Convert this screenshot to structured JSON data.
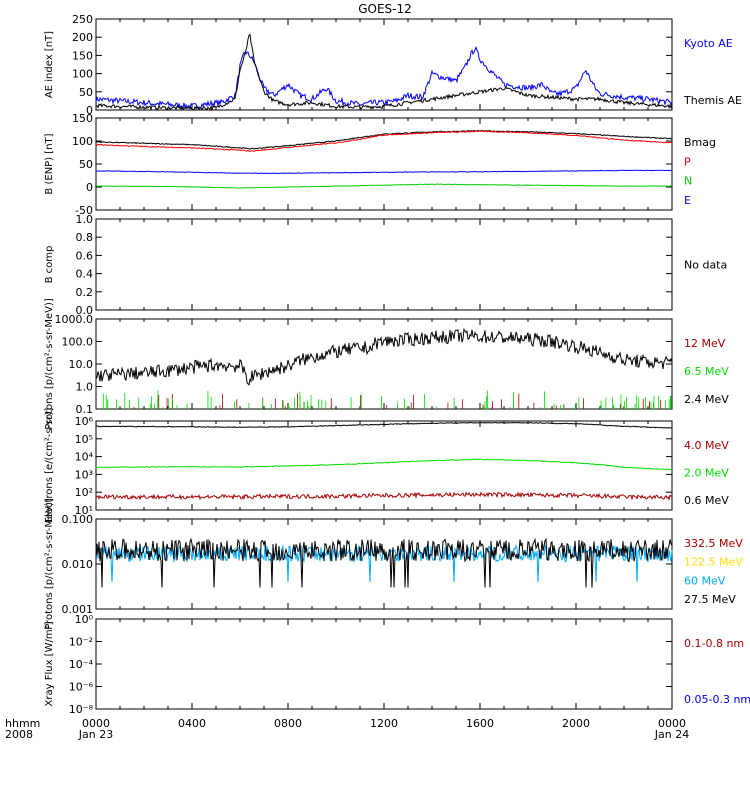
{
  "title": "GOES-12",
  "x_axis": {
    "corner_label_1": "hhmm",
    "corner_label_2": "2008",
    "ticks": [
      {
        "label": "0000",
        "hour": 0,
        "date": "Jan 23"
      },
      {
        "label": "0400",
        "hour": 4
      },
      {
        "label": "0800",
        "hour": 8
      },
      {
        "label": "1200",
        "hour": 12
      },
      {
        "label": "1600",
        "hour": 16
      },
      {
        "label": "2000",
        "hour": 20
      },
      {
        "label": "0000",
        "hour": 24,
        "date": "Jan 24"
      }
    ]
  },
  "chart_data": [
    {
      "type": "line",
      "ylabel": "AE index [nT]",
      "ylim": [
        0,
        250
      ],
      "scale": "linear",
      "yticks": [
        [
          0,
          "0"
        ],
        [
          50,
          "50"
        ],
        [
          100,
          "100"
        ],
        [
          150,
          "150"
        ],
        [
          200,
          "200"
        ],
        [
          250,
          "250"
        ]
      ],
      "series": [
        {
          "name": "Kyoto AE",
          "color": "#0000ff",
          "noise": 8,
          "x": [
            0,
            1,
            2,
            3,
            4,
            4.8,
            5.2,
            5.8,
            6.0,
            6.2,
            6.4,
            6.6,
            6.8,
            7.0,
            7.4,
            8.0,
            8.5,
            9.0,
            9.6,
            10,
            11,
            11.6,
            12,
            12.5,
            13,
            13.6,
            14,
            14.4,
            15,
            15.4,
            15.6,
            15.8,
            16,
            16.4,
            17,
            18,
            18.6,
            19,
            19.4,
            20,
            20.4,
            20.8,
            21,
            22,
            23,
            24
          ],
          "y": [
            30,
            25,
            20,
            15,
            10,
            18,
            20,
            40,
            120,
            160,
            150,
            130,
            90,
            60,
            40,
            70,
            40,
            30,
            60,
            25,
            15,
            20,
            20,
            25,
            40,
            35,
            100,
            90,
            80,
            120,
            150,
            170,
            140,
            110,
            70,
            60,
            70,
            45,
            45,
            60,
            110,
            60,
            45,
            35,
            30,
            20
          ]
        },
        {
          "name": "Themis AE",
          "color": "#000000",
          "noise": 5,
          "x": [
            0,
            1,
            2,
            3,
            4,
            5,
            5.8,
            6.0,
            6.2,
            6.4,
            6.6,
            6.8,
            7.0,
            7.4,
            8,
            9,
            10,
            11,
            12,
            13,
            14,
            15,
            16,
            17,
            18,
            19,
            20,
            21,
            22,
            23,
            24
          ],
          "y": [
            12,
            10,
            8,
            6,
            5,
            6,
            30,
            110,
            150,
            210,
            130,
            90,
            50,
            25,
            15,
            20,
            10,
            8,
            10,
            20,
            30,
            40,
            50,
            60,
            40,
            35,
            30,
            30,
            20,
            15,
            10
          ]
        }
      ]
    },
    {
      "type": "line",
      "ylabel": "B (ENP) [nT]",
      "ylim": [
        -50,
        150
      ],
      "scale": "linear",
      "yticks": [
        [
          -50,
          "-50"
        ],
        [
          0,
          "0"
        ],
        [
          50,
          "50"
        ],
        [
          100,
          "100"
        ],
        [
          150,
          "150"
        ]
      ],
      "series": [
        {
          "name": "Bmag",
          "color": "#000000",
          "noise": 1,
          "x": [
            0,
            2,
            4,
            6,
            6.5,
            8,
            10,
            11,
            12,
            14,
            16,
            18,
            20,
            22,
            24
          ],
          "y": [
            98,
            95,
            92,
            85,
            83,
            90,
            100,
            108,
            115,
            120,
            122,
            120,
            116,
            110,
            105
          ]
        },
        {
          "name": "P",
          "color": "#ff0000",
          "noise": 1,
          "x": [
            0,
            2,
            4,
            6,
            6.5,
            8,
            10,
            11,
            12,
            14,
            16,
            18,
            20,
            22,
            24
          ],
          "y": [
            92,
            88,
            85,
            80,
            78,
            86,
            96,
            104,
            113,
            118,
            121,
            118,
            112,
            102,
            96
          ]
        },
        {
          "name": "N",
          "color": "#00cc00",
          "noise": 0.6,
          "x": [
            0,
            3,
            6,
            8,
            10,
            12,
            14,
            16,
            18,
            20,
            22,
            24
          ],
          "y": [
            2,
            1,
            -2,
            0,
            2,
            4,
            6,
            5,
            4,
            3,
            2,
            2
          ]
        },
        {
          "name": "E",
          "color": "#0000ff",
          "noise": 0.6,
          "x": [
            0,
            3,
            6,
            8,
            10,
            12,
            14,
            16,
            18,
            20,
            22,
            24
          ],
          "y": [
            35,
            33,
            30,
            30,
            31,
            32,
            33,
            33,
            34,
            35,
            36,
            36
          ]
        }
      ]
    },
    {
      "type": "line",
      "ylabel": "B comp",
      "ylim": [
        0,
        1
      ],
      "scale": "linear",
      "yticks": [
        [
          0,
          "0.0"
        ],
        [
          0.2,
          "0.2"
        ],
        [
          0.4,
          "0.4"
        ],
        [
          0.6,
          "0.6"
        ],
        [
          0.8,
          "0.8"
        ],
        [
          1.0,
          "1.0"
        ]
      ],
      "no_data_label": "No data",
      "series": []
    },
    {
      "type": "line",
      "ylabel": "Protons [p/(cm²-s-sr-MeV)]",
      "ylim": [
        0.1,
        1000
      ],
      "scale": "log",
      "yticks": [
        [
          0.1,
          "0.1"
        ],
        [
          1,
          "1.0"
        ],
        [
          10,
          "10.0"
        ],
        [
          100,
          "100.0"
        ],
        [
          1000,
          "1000.0"
        ]
      ],
      "series": [
        {
          "name": "12 MeV",
          "color": "#aa0000",
          "spikes": true,
          "spike_max": 0.45,
          "spike_rate": 0.12
        },
        {
          "name": "6.5 MeV",
          "color": "#00dd00",
          "spikes": true,
          "spike_max": 0.6,
          "spike_rate": 0.35
        },
        {
          "name": "2.4 MeV",
          "color": "#000000",
          "noise": 0.3,
          "x": [
            0,
            2,
            3,
            4,
            5,
            6,
            6.3,
            7,
            8,
            9,
            10,
            11,
            11.5,
            11.7,
            12,
            13,
            14,
            15,
            15.5,
            16,
            17,
            18,
            19,
            20,
            21,
            22,
            23,
            24
          ],
          "y": [
            3,
            4,
            5,
            7,
            9,
            8,
            2,
            4,
            8,
            20,
            35,
            50,
            55,
            90,
            100,
            120,
            150,
            170,
            180,
            170,
            150,
            130,
            100,
            60,
            30,
            15,
            12,
            11
          ]
        }
      ]
    },
    {
      "type": "line",
      "ylabel": "Electrons [e/(cm²-s-sr)]",
      "ylim": [
        10,
        1000000
      ],
      "scale": "log",
      "yticks": [
        [
          10,
          "10¹"
        ],
        [
          100,
          "10²"
        ],
        [
          1000,
          "10³"
        ],
        [
          10000,
          "10⁴"
        ],
        [
          100000,
          "10⁵"
        ],
        [
          1000000,
          "10⁶"
        ]
      ],
      "series": [
        {
          "name": "4.0 MeV",
          "color": "#aa0000",
          "noise": 0.12,
          "x": [
            0,
            6,
            10,
            14,
            16,
            18,
            20,
            22,
            24
          ],
          "y": [
            55,
            55,
            60,
            70,
            75,
            70,
            65,
            55,
            50
          ]
        },
        {
          "name": "2.0 MeV",
          "color": "#00dd00",
          "noise": 0.02,
          "x": [
            0,
            2,
            4,
            6,
            8,
            10,
            12,
            14,
            16,
            18,
            20,
            22,
            24
          ],
          "y": [
            2500,
            2600,
            2700,
            2600,
            3000,
            3500,
            4500,
            6000,
            7000,
            6000,
            4500,
            2500,
            1800
          ]
        },
        {
          "name": "0.6 MeV",
          "color": "#000000",
          "noise": 0.02,
          "x": [
            0,
            3,
            6,
            8,
            10,
            12,
            14,
            16,
            18,
            20,
            22,
            24
          ],
          "y": [
            500000,
            480000,
            450000,
            470000,
            550000,
            650000,
            750000,
            800000,
            800000,
            700000,
            500000,
            400000
          ]
        }
      ]
    },
    {
      "type": "line",
      "ylabel": "Protons [p/(cm²-s-sr-MeV)]",
      "ylim": [
        0.001,
        0.1
      ],
      "scale": "log",
      "yticks": [
        [
          0.001,
          "0.001"
        ],
        [
          0.01,
          "0.010"
        ],
        [
          0.1,
          "0.100"
        ]
      ],
      "series": [
        {
          "name": "332.5 MeV",
          "color": "#aa0000"
        },
        {
          "name": "122.5 MeV",
          "color": "#ffdd00"
        },
        {
          "name": "60 MeV",
          "color": "#00aaff",
          "noise_series": true,
          "base": 0.017,
          "spread": 0.35,
          "dip": 0.004
        },
        {
          "name": "27.5 MeV",
          "color": "#000000",
          "noise_series": true,
          "base": 0.02,
          "spread": 0.5,
          "dip": 0.003
        }
      ]
    },
    {
      "type": "line",
      "ylabel": "Xray Flux [W/m²]",
      "ylim": [
        1e-08,
        1
      ],
      "scale": "log",
      "yticks": [
        [
          1e-08,
          "10⁻⁸"
        ],
        [
          1e-06,
          "10⁻⁶"
        ],
        [
          0.0001,
          "10⁻⁴"
        ],
        [
          0.01,
          "10⁻²"
        ],
        [
          1,
          "10⁰"
        ]
      ],
      "series": [
        {
          "name": "0.1-0.8 nm",
          "color": "#aa0000"
        },
        {
          "name": "0.05-0.3 nm",
          "color": "#0000ff"
        }
      ]
    }
  ]
}
